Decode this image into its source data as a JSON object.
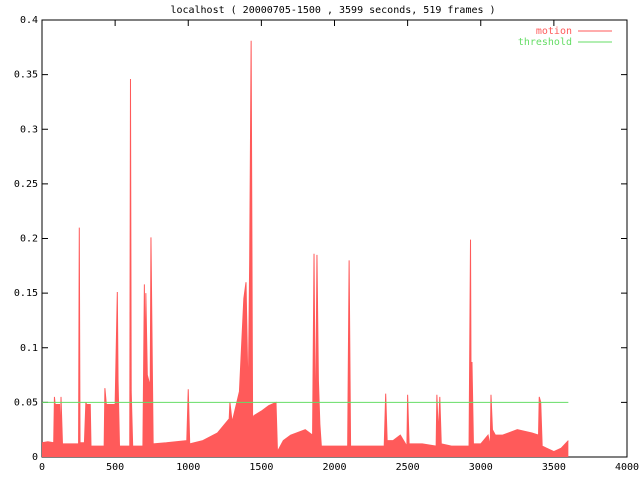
{
  "chart_data": {
    "type": "line",
    "title": "localhost ( 20000705-1500 , 3599 seconds, 519 frames )",
    "xlim": [
      0,
      4000
    ],
    "xticks": [
      0,
      500,
      1000,
      1500,
      2000,
      2500,
      3000,
      3500,
      4000
    ],
    "ylim": [
      0,
      0.4
    ],
    "yticks": [
      0,
      0.05,
      0.1,
      0.15,
      0.2,
      0.25,
      0.3,
      0.35,
      0.4
    ],
    "legend": "top-right",
    "fill_under": true,
    "series": [
      {
        "name": "motion",
        "color": "#ff5a5a",
        "x": [
          0,
          40,
          80,
          85,
          90,
          120,
          125,
          130,
          140,
          200,
          250,
          255,
          260,
          290,
          300,
          305,
          330,
          335,
          400,
          425,
          430,
          440,
          500,
          515,
          520,
          530,
          600,
          605,
          610,
          620,
          690,
          700,
          705,
          710,
          720,
          740,
          745,
          760,
          850,
          990,
          1000,
          1010,
          1100,
          1200,
          1280,
          1285,
          1300,
          1350,
          1380,
          1395,
          1410,
          1420,
          1430,
          1440,
          1450,
          1500,
          1550,
          1600,
          1610,
          1650,
          1700,
          1800,
          1850,
          1860,
          1870,
          1880,
          1890,
          1900,
          1910,
          2000,
          2090,
          2100,
          2110,
          2200,
          2340,
          2350,
          2360,
          2400,
          2450,
          2495,
          2500,
          2510,
          2600,
          2695,
          2700,
          2710,
          2720,
          2730,
          2800,
          2920,
          2930,
          2935,
          2940,
          2950,
          3000,
          3050,
          3065,
          3070,
          3080,
          3100,
          3150,
          3250,
          3350,
          3395,
          3400,
          3410,
          3420,
          3450,
          3500,
          3550,
          3599
        ],
        "values": [
          0.013,
          0.014,
          0.013,
          0.055,
          0.048,
          0.048,
          0.01,
          0.055,
          0.012,
          0.012,
          0.012,
          0.21,
          0.013,
          0.013,
          0.05,
          0.048,
          0.048,
          0.01,
          0.01,
          0.01,
          0.063,
          0.048,
          0.048,
          0.151,
          0.07,
          0.01,
          0.01,
          0.346,
          0.06,
          0.01,
          0.01,
          0.158,
          0.065,
          0.15,
          0.075,
          0.065,
          0.201,
          0.012,
          0.013,
          0.015,
          0.062,
          0.012,
          0.015,
          0.022,
          0.035,
          0.05,
          0.032,
          0.06,
          0.145,
          0.16,
          0.05,
          0.18,
          0.381,
          0.035,
          0.038,
          0.042,
          0.047,
          0.05,
          0.005,
          0.015,
          0.02,
          0.025,
          0.02,
          0.186,
          0.01,
          0.185,
          0.07,
          0.03,
          0.01,
          0.01,
          0.01,
          0.18,
          0.01,
          0.01,
          0.01,
          0.058,
          0.015,
          0.015,
          0.02,
          0.01,
          0.057,
          0.012,
          0.012,
          0.01,
          0.057,
          0.02,
          0.055,
          0.012,
          0.01,
          0.01,
          0.199,
          0.02,
          0.087,
          0.012,
          0.012,
          0.02,
          0.01,
          0.057,
          0.025,
          0.02,
          0.02,
          0.025,
          0.022,
          0.02,
          0.055,
          0.05,
          0.01,
          0.008,
          0.005,
          0.008,
          0.015
        ]
      },
      {
        "name": "threshold",
        "color": "#66dd66",
        "x": [
          0,
          3599
        ],
        "values": [
          0.05,
          0.05
        ]
      }
    ]
  }
}
